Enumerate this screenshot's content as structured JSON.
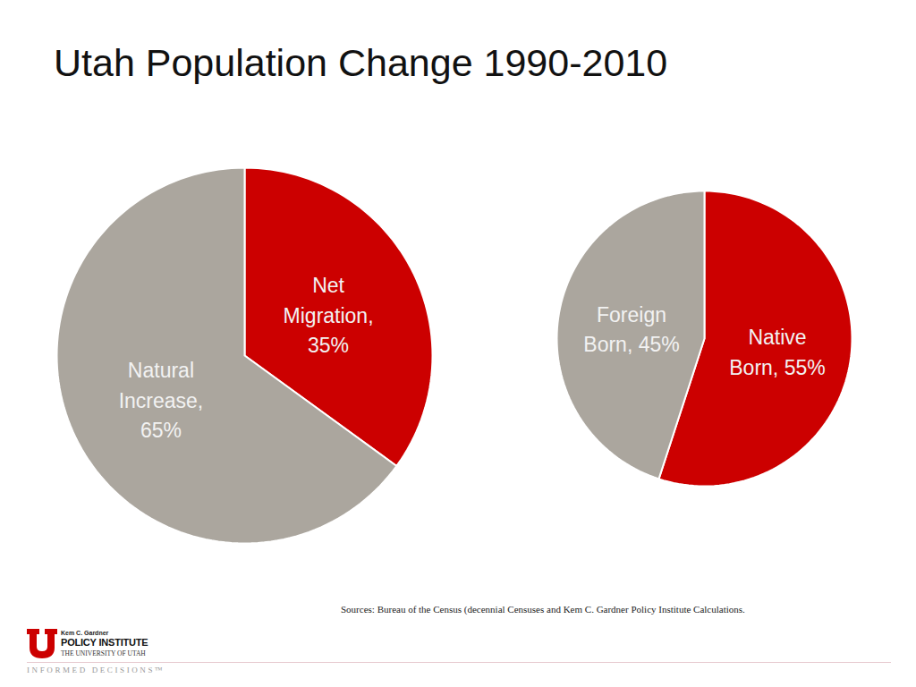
{
  "title": "Utah Population Change 1990-2010",
  "chart_data": [
    {
      "type": "pie",
      "categories": [
        "Net Migration",
        "Natural Increase"
      ],
      "values": [
        35,
        65
      ],
      "value_labels": [
        "Net Migration, 35%",
        "Natural Increase, 65%"
      ],
      "colors": [
        "#cc0000",
        "#aba69e"
      ],
      "data_labels": true
    },
    {
      "type": "pie",
      "categories": [
        "Native Born",
        "Foreign Born"
      ],
      "values": [
        55,
        45
      ],
      "value_labels": [
        "Native Born, 55%",
        "Foreign Born, 45%"
      ],
      "colors": [
        "#cc0000",
        "#aba69e"
      ],
      "data_labels": true
    }
  ],
  "source": "Sources: Bureau of the Census (decennial Censuses and Kem C. Gardner Policy Institute Calculations.",
  "logo": {
    "name_small": "Kem C. Gardner",
    "name": "POLICY INSTITUTE",
    "university": "THE UNIVERSITY OF UTAH",
    "tagline": "INFORMED DECISIONS™"
  }
}
